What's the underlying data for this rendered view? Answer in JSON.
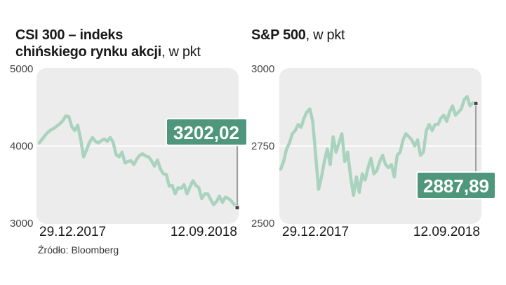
{
  "charts": {
    "left": {
      "title_bold_1": "CSI 300 – indeks",
      "title_bold_2": "chińskiego rynku akcji",
      "title_unit": ", w pkt"
    },
    "right": {
      "title_bold": "S&P 500",
      "title_unit": ", w pkt"
    }
  },
  "source": "Źródło: Bloomberg",
  "colors": {
    "line": "#a9d3bf",
    "label_bg": "#4f977c",
    "panel": "#ececec"
  },
  "chart_data": [
    {
      "type": "line",
      "title": "CSI 300 – indeks chińskiego rynku akcji, w pkt",
      "ylim": [
        3000,
        5000
      ],
      "yticks": [
        "5000",
        "4000",
        "3000"
      ],
      "x_start_label": "29.12.2017",
      "x_end_label": "12.09.2018",
      "last_value_label": "3202,02",
      "values": [
        4040,
        4090,
        4140,
        4180,
        4210,
        4230,
        4260,
        4290,
        4330,
        4390,
        4380,
        4250,
        4200,
        4270,
        4090,
        3860,
        3950,
        4050,
        4110,
        4060,
        4040,
        4070,
        4090,
        4060,
        4110,
        4050,
        3890,
        3860,
        3920,
        3780,
        3800,
        3810,
        3760,
        3830,
        3880,
        3900,
        3870,
        3860,
        3810,
        3740,
        3820,
        3700,
        3640,
        3630,
        3480,
        3490,
        3380,
        3460,
        3450,
        3500,
        3380,
        3470,
        3550,
        3490,
        3460,
        3320,
        3380,
        3380,
        3310,
        3240,
        3280,
        3350,
        3270,
        3340,
        3320,
        3290,
        3240,
        3202.02
      ]
    },
    {
      "type": "line",
      "title": "S&P 500, w pkt",
      "ylim": [
        2500,
        3000
      ],
      "yticks": [
        "3000",
        "2750",
        "2500"
      ],
      "x_start_label": "29.12.2017",
      "x_end_label": "12.09.2018",
      "last_value_label": "2887,89",
      "values": [
        2675,
        2700,
        2740,
        2760,
        2790,
        2800,
        2820,
        2810,
        2840,
        2860,
        2870,
        2830,
        2720,
        2610,
        2650,
        2700,
        2740,
        2690,
        2780,
        2730,
        2760,
        2790,
        2700,
        2730,
        2650,
        2590,
        2650,
        2600,
        2660,
        2640,
        2680,
        2710,
        2660,
        2670,
        2700,
        2720,
        2690,
        2680,
        2690,
        2650,
        2720,
        2730,
        2770,
        2790,
        2780,
        2770,
        2750,
        2770,
        2720,
        2730,
        2800,
        2820,
        2800,
        2820,
        2820,
        2840,
        2850,
        2830,
        2860,
        2880,
        2850,
        2860,
        2870,
        2900,
        2910,
        2880,
        2890,
        2887.89
      ]
    }
  ]
}
